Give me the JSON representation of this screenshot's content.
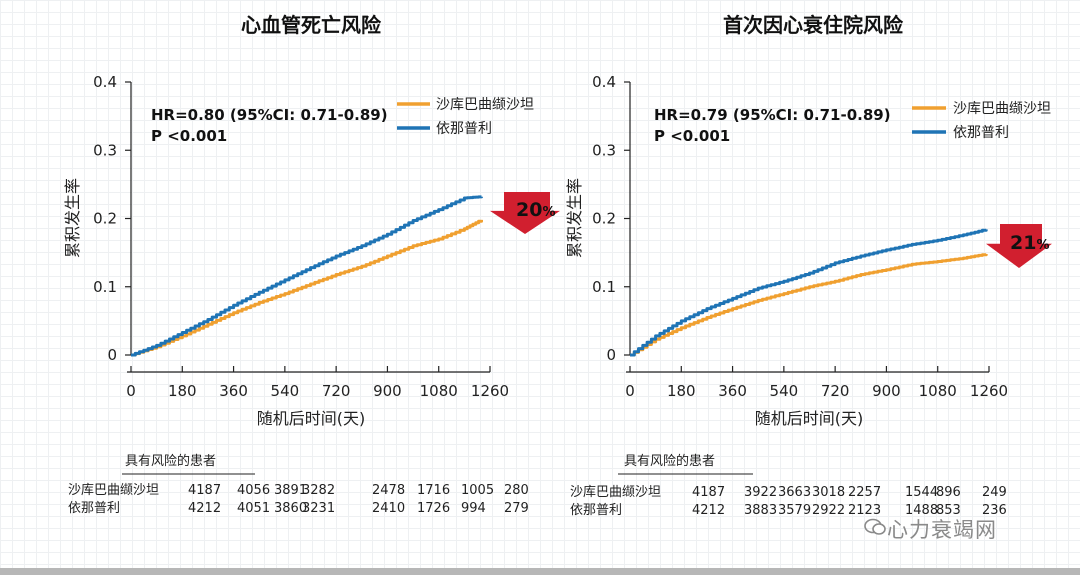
{
  "watermark": "心力衰竭网",
  "chart_data": [
    {
      "type": "line",
      "title": "心血管死亡风险",
      "xlabel": "随机后时间(天)",
      "ylabel": "累积发生率",
      "xlim": [
        0,
        1260
      ],
      "ylim": [
        0,
        0.4
      ],
      "xticks": [
        0,
        180,
        360,
        540,
        720,
        900,
        1080,
        1260
      ],
      "yticks": [
        0,
        0.1,
        0.2,
        0.3,
        0.4
      ],
      "ytick_labels": [
        "0",
        "0.1",
        "0.2",
        "0.3",
        "0.4"
      ],
      "hr_text": "HR=0.80 (95%CI: 0.71-0.89)",
      "p_text": "P <0.001",
      "reduction": "20",
      "reduction_unit": "%",
      "series": [
        {
          "name": "沙库巴曲缬沙坦",
          "color": "#f0a030",
          "x": [
            0,
            90,
            180,
            270,
            360,
            450,
            540,
            630,
            720,
            810,
            900,
            990,
            1080,
            1170,
            1230
          ],
          "y": [
            0,
            0.012,
            0.028,
            0.045,
            0.062,
            0.077,
            0.09,
            0.104,
            0.118,
            0.13,
            0.145,
            0.16,
            0.17,
            0.185,
            0.198
          ]
        },
        {
          "name": "依那普利",
          "color": "#1f74b5",
          "x": [
            0,
            90,
            180,
            270,
            360,
            450,
            540,
            630,
            720,
            810,
            900,
            990,
            1080,
            1170,
            1230
          ],
          "y": [
            0,
            0.014,
            0.033,
            0.052,
            0.073,
            0.092,
            0.11,
            0.128,
            0.145,
            0.16,
            0.177,
            0.197,
            0.213,
            0.23,
            0.232
          ]
        }
      ],
      "risk_table": {
        "header": "具有风险的患者",
        "rows": [
          {
            "label": "沙库巴曲缬沙坦",
            "values": [
              "4187",
              "4056",
              "3891",
              "3282",
              "2478",
              "1716",
              "1005",
              "280"
            ]
          },
          {
            "label": "依那普利",
            "values": [
              "4212",
              "4051",
              "3860",
              "3231",
              "2410",
              "1726",
              "994",
              "279"
            ]
          }
        ]
      }
    },
    {
      "type": "line",
      "title": "首次因心衰住院风险",
      "xlabel": "随机后时间(天)",
      "ylabel": "累积发生率",
      "xlim": [
        0,
        1260
      ],
      "ylim": [
        0,
        0.4
      ],
      "xticks": [
        0,
        180,
        360,
        540,
        720,
        900,
        1080,
        1260
      ],
      "yticks": [
        0,
        0.1,
        0.2,
        0.3,
        0.4
      ],
      "ytick_labels": [
        "0",
        "0.1",
        "0.2",
        "0.3",
        "0.4"
      ],
      "hr_text": "HR=0.79 (95%CI: 0.71-0.89)",
      "p_text": "P <0.001",
      "reduction": "21",
      "reduction_unit": "%",
      "series": [
        {
          "name": "沙库巴曲缬沙坦",
          "color": "#f0a030",
          "x": [
            0,
            90,
            180,
            270,
            360,
            450,
            540,
            630,
            720,
            810,
            900,
            990,
            1080,
            1170,
            1250
          ],
          "y": [
            0,
            0.023,
            0.04,
            0.055,
            0.068,
            0.08,
            0.09,
            0.1,
            0.108,
            0.118,
            0.125,
            0.133,
            0.137,
            0.142,
            0.148
          ]
        },
        {
          "name": "依那普利",
          "color": "#1f74b5",
          "x": [
            0,
            90,
            180,
            270,
            360,
            450,
            540,
            630,
            720,
            810,
            900,
            990,
            1080,
            1170,
            1250
          ],
          "y": [
            0,
            0.028,
            0.05,
            0.068,
            0.083,
            0.098,
            0.108,
            0.12,
            0.135,
            0.145,
            0.154,
            0.162,
            0.168,
            0.176,
            0.184
          ]
        }
      ],
      "risk_table": {
        "header": "具有风险的患者",
        "rows": [
          {
            "label": "沙库巴曲缬沙坦",
            "values": [
              "4187",
              "3922",
              "3663",
              "3018",
              "2257",
              "1544",
              "896",
              "249"
            ]
          },
          {
            "label": "依那普利",
            "values": [
              "4212",
              "3883",
              "3579",
              "2922",
              "2123",
              "1488",
              "853",
              "236"
            ]
          }
        ]
      }
    }
  ]
}
